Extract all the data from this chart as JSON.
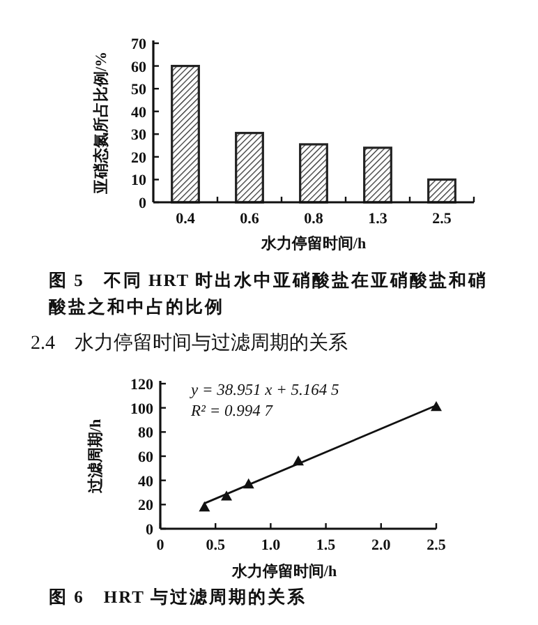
{
  "chart_data": [
    {
      "type": "bar",
      "categories": [
        "0.4",
        "0.6",
        "0.8",
        "1.3",
        "2.5"
      ],
      "values": [
        60,
        30.5,
        25.5,
        24,
        10
      ],
      "color": "#222222",
      "ylim": [
        0,
        70
      ],
      "yticks": [
        0,
        10,
        20,
        30,
        40,
        50,
        60,
        70
      ],
      "ylabel": "亚硝态氮所占比例/%",
      "xlabel": "水力停留时间/h",
      "annotations": [
        "图 5　不同 HRT 时出水中亚硝酸盐在亚硝酸盐和硝酸盐之和中占的比例"
      ]
    },
    {
      "type": "scatter",
      "title": "2.4　水力停留时间与过滤周期的关系",
      "xlabel": "水力停留时间/h",
      "ylabel": "过滤周期/h",
      "xlim": [
        0,
        2.5
      ],
      "xticks": [
        0,
        0.5,
        {
          "value": 1,
          "label": "1.0"
        },
        1.5,
        {
          "value": 2,
          "label": "2.0"
        },
        2.5
      ],
      "ylim": [
        0,
        120
      ],
      "yticks": [
        0,
        20,
        40,
        60,
        80,
        100,
        120
      ],
      "series": [
        {
          "type": "scatter",
          "marker": "triangle",
          "color": "#111111",
          "x": [
            0.4,
            0.6,
            0.8,
            1.25,
            2.5
          ],
          "values": [
            18,
            27,
            37,
            56,
            101
          ]
        },
        {
          "type": "line",
          "color": "#111111",
          "x": [
            0.4,
            2.5
          ],
          "values": [
            21,
            102
          ]
        }
      ],
      "annotations": [
        "y = 38.951 x + 5.164 5",
        "R² = 0.994 7",
        "图 6　HRT 与过滤周期的关系"
      ]
    }
  ]
}
